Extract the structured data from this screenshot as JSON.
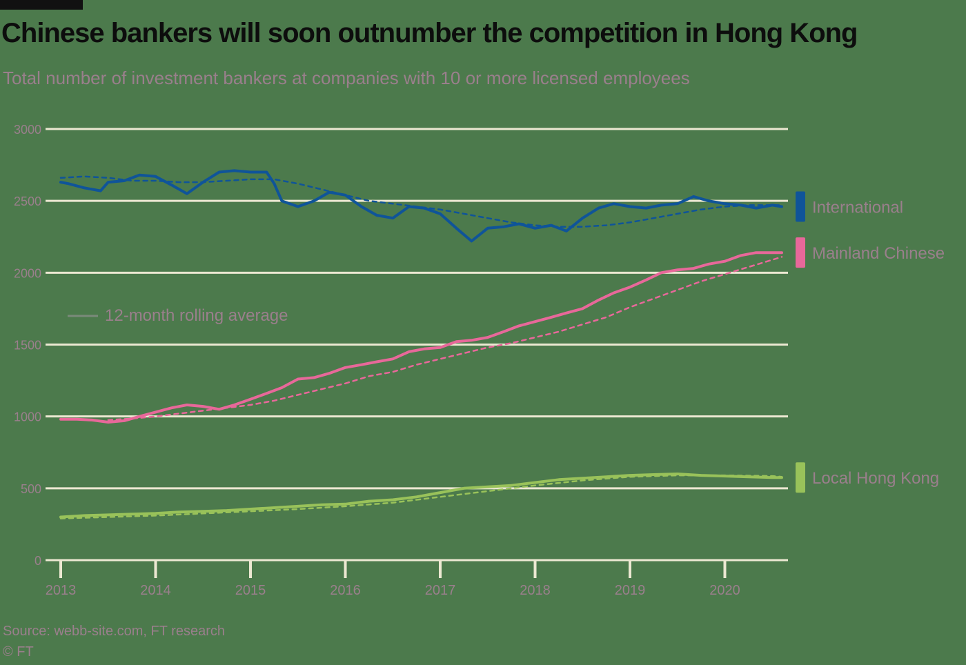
{
  "header": {
    "title": "Chinese bankers will soon outnumber the competition in Hong Kong",
    "subtitle": "Total number of investment bankers at companies with 10 or more licensed employees"
  },
  "footer": {
    "source": "Source: webb-site.com, FT research",
    "copyright": "© FT"
  },
  "legend": {
    "rolling_label": "12-month rolling average"
  },
  "colors": {
    "background": "#4c7a4c",
    "grid": "#ece8d2",
    "international": "#0f5499",
    "mainland": "#e8689a",
    "local": "#99c25a",
    "text_muted": "#9a7f8c"
  },
  "chart_data": {
    "type": "line",
    "title": "Chinese bankers will soon outnumber the competition in Hong Kong",
    "subtitle": "Total number of investment bankers at companies with 10 or more licensed employees",
    "xlim": [
      2013.0,
      2020.67
    ],
    "ylim": [
      0,
      3000
    ],
    "yticks": [
      0,
      500,
      1000,
      1500,
      2000,
      2500,
      3000
    ],
    "ytick_labels": [
      "0",
      "500",
      "1000",
      "1500",
      "2000",
      "2500",
      "3000"
    ],
    "xticks": [
      2013,
      2014,
      2015,
      2016,
      2017,
      2018,
      2019,
      2020
    ],
    "xtick_labels": [
      "2013",
      "2014",
      "2015",
      "2016",
      "2017",
      "2018",
      "2019",
      "2020"
    ],
    "grid": true,
    "legend_placement": "right end labels",
    "series": [
      {
        "name": "International",
        "color": "#0f5499",
        "x": [
          2013.0,
          2013.08,
          2013.25,
          2013.42,
          2013.5,
          2013.67,
          2013.83,
          2014.0,
          2014.17,
          2014.33,
          2014.5,
          2014.67,
          2014.83,
          2015.0,
          2015.17,
          2015.25,
          2015.33,
          2015.5,
          2015.67,
          2015.83,
          2016.0,
          2016.17,
          2016.33,
          2016.5,
          2016.67,
          2016.83,
          2017.0,
          2017.17,
          2017.33,
          2017.5,
          2017.67,
          2017.83,
          2018.0,
          2018.17,
          2018.33,
          2018.5,
          2018.67,
          2018.83,
          2019.0,
          2019.17,
          2019.33,
          2019.5,
          2019.67,
          2019.83,
          2020.0,
          2020.17,
          2020.33,
          2020.5,
          2020.6
        ],
        "values": [
          2630,
          2620,
          2590,
          2570,
          2630,
          2640,
          2680,
          2670,
          2610,
          2550,
          2630,
          2700,
          2710,
          2700,
          2700,
          2620,
          2500,
          2460,
          2500,
          2560,
          2540,
          2460,
          2400,
          2380,
          2460,
          2450,
          2410,
          2310,
          2220,
          2310,
          2320,
          2340,
          2310,
          2330,
          2290,
          2380,
          2450,
          2480,
          2460,
          2450,
          2470,
          2480,
          2530,
          2500,
          2480,
          2470,
          2450,
          2470,
          2460
        ]
      },
      {
        "name": "International 12-month rolling average",
        "color": "#0f5499",
        "dashed": true,
        "x": [
          2013.0,
          2013.25,
          2013.5,
          2013.75,
          2014.0,
          2014.25,
          2014.5,
          2014.75,
          2015.0,
          2015.25,
          2015.5,
          2015.75,
          2016.0,
          2016.25,
          2016.5,
          2016.75,
          2017.0,
          2017.25,
          2017.5,
          2017.75,
          2018.0,
          2018.25,
          2018.5,
          2018.75,
          2019.0,
          2019.25,
          2019.5,
          2019.75,
          2020.0,
          2020.25,
          2020.5,
          2020.6
        ],
        "values": [
          2660,
          2670,
          2660,
          2640,
          2640,
          2630,
          2630,
          2640,
          2650,
          2650,
          2620,
          2580,
          2540,
          2500,
          2480,
          2460,
          2440,
          2410,
          2380,
          2350,
          2330,
          2320,
          2320,
          2330,
          2350,
          2380,
          2410,
          2440,
          2460,
          2470,
          2470,
          2470
        ]
      },
      {
        "name": "Mainland Chinese",
        "color": "#e8689a",
        "x": [
          2013.0,
          2013.17,
          2013.33,
          2013.5,
          2013.67,
          2013.83,
          2014.0,
          2014.17,
          2014.33,
          2014.5,
          2014.67,
          2014.83,
          2015.0,
          2015.17,
          2015.33,
          2015.5,
          2015.67,
          2015.83,
          2016.0,
          2016.17,
          2016.33,
          2016.5,
          2016.67,
          2016.83,
          2017.0,
          2017.17,
          2017.33,
          2017.5,
          2017.67,
          2017.83,
          2018.0,
          2018.17,
          2018.33,
          2018.5,
          2018.67,
          2018.83,
          2019.0,
          2019.17,
          2019.33,
          2019.5,
          2019.67,
          2019.83,
          2020.0,
          2020.17,
          2020.33,
          2020.5,
          2020.6
        ],
        "values": [
          980,
          980,
          975,
          960,
          970,
          1000,
          1030,
          1060,
          1080,
          1070,
          1050,
          1080,
          1120,
          1160,
          1200,
          1260,
          1270,
          1300,
          1340,
          1360,
          1380,
          1400,
          1450,
          1470,
          1480,
          1520,
          1530,
          1550,
          1590,
          1630,
          1660,
          1690,
          1720,
          1750,
          1810,
          1860,
          1900,
          1950,
          2000,
          2020,
          2030,
          2060,
          2080,
          2120,
          2140,
          2140,
          2140
        ]
      },
      {
        "name": "Mainland Chinese 12-month rolling average",
        "color": "#e8689a",
        "dashed": true,
        "x": [
          2013.5,
          2013.75,
          2014.0,
          2014.25,
          2014.5,
          2014.75,
          2015.0,
          2015.25,
          2015.5,
          2015.75,
          2016.0,
          2016.25,
          2016.5,
          2016.75,
          2017.0,
          2017.25,
          2017.5,
          2017.75,
          2018.0,
          2018.25,
          2018.5,
          2018.75,
          2019.0,
          2019.25,
          2019.5,
          2019.75,
          2020.0,
          2020.25,
          2020.5,
          2020.6
        ],
        "values": [
          975,
          985,
          1000,
          1020,
          1040,
          1060,
          1080,
          1110,
          1150,
          1190,
          1230,
          1280,
          1310,
          1360,
          1400,
          1440,
          1480,
          1510,
          1550,
          1590,
          1640,
          1690,
          1760,
          1820,
          1880,
          1940,
          1990,
          2040,
          2090,
          2110
        ]
      },
      {
        "name": "Local Hong Kong",
        "color": "#99c25a",
        "x": [
          2013.0,
          2013.25,
          2013.5,
          2013.75,
          2014.0,
          2014.25,
          2014.5,
          2014.75,
          2015.0,
          2015.25,
          2015.5,
          2015.75,
          2016.0,
          2016.25,
          2016.5,
          2016.75,
          2017.0,
          2017.25,
          2017.5,
          2017.75,
          2018.0,
          2018.25,
          2018.5,
          2018.75,
          2019.0,
          2019.25,
          2019.5,
          2019.75,
          2020.0,
          2020.25,
          2020.5,
          2020.6
        ],
        "values": [
          300,
          310,
          315,
          320,
          325,
          335,
          340,
          345,
          355,
          365,
          375,
          385,
          390,
          410,
          420,
          440,
          470,
          500,
          510,
          520,
          540,
          560,
          570,
          580,
          590,
          595,
          600,
          590,
          585,
          580,
          575,
          575
        ]
      },
      {
        "name": "Local Hong Kong 12-month rolling average",
        "color": "#99c25a",
        "dashed": true,
        "x": [
          2013.0,
          2013.5,
          2014.0,
          2014.5,
          2015.0,
          2015.5,
          2016.0,
          2016.5,
          2017.0,
          2017.5,
          2018.0,
          2018.5,
          2019.0,
          2019.5,
          2020.0,
          2020.5,
          2020.6
        ],
        "values": [
          290,
          300,
          310,
          325,
          340,
          355,
          375,
          400,
          440,
          480,
          520,
          555,
          580,
          590,
          590,
          585,
          580
        ]
      }
    ],
    "end_labels": [
      {
        "series": "International",
        "label": "International"
      },
      {
        "series": "Mainland Chinese",
        "label": "Mainland Chinese"
      },
      {
        "series": "Local Hong Kong",
        "label": "Local Hong Kong"
      }
    ]
  }
}
